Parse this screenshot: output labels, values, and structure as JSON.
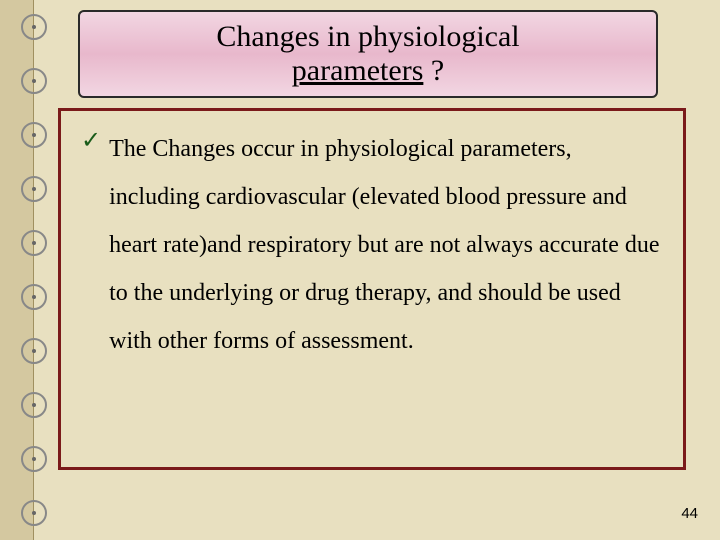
{
  "slide": {
    "background_color": "#e8e0c0",
    "left_strip_color": "#d4c8a0",
    "ring_count": 10,
    "ring_color": "#888888"
  },
  "title": {
    "line1": "Changes in  physiological",
    "line2": "parameters ?",
    "underline_word": "parameters",
    "box_border_color": "#2a2a2a",
    "box_bg_gradient": [
      "#f2d6e2",
      "#e8b8cc",
      "#f2d6e2"
    ],
    "font_size_pt": 30
  },
  "content": {
    "border_color": "#7a1a1a",
    "check_color": "#1a5c1a",
    "check_glyph": "✓",
    "text": "The Changes  occur  in  physiological parameters, including  cardiovascular (elevated blood pressure and heart rate)and respiratory but are not always accurate due to the underlying or drug therapy, and should be used with other forms of assessment.",
    "font_size_pt": 24,
    "line_height": 2.0
  },
  "page_number": "44"
}
